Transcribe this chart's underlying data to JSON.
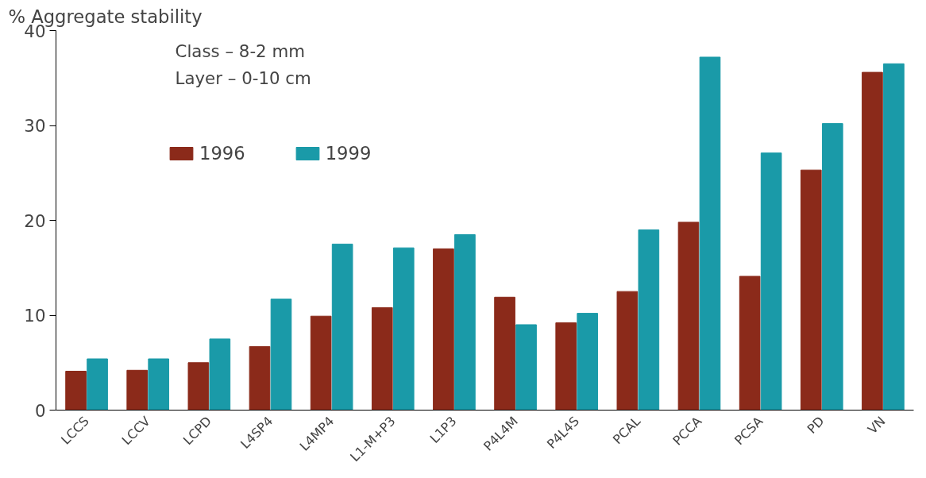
{
  "chart_data": {
    "type": "bar",
    "ylabel": "% Aggregate stability",
    "categories": [
      "LCCS",
      "LCCV",
      "LCPD",
      "L4SP4",
      "L4MP4",
      "L1-M+P3",
      "L1P3",
      "P4L4M",
      "P4L4S",
      "PCAL",
      "PCCA",
      "PCSA",
      "PD",
      "VN"
    ],
    "series": [
      {
        "name": "1996",
        "color": "#8b2a1a",
        "values": [
          4.1,
          4.2,
          5.0,
          6.7,
          9.9,
          10.8,
          17.0,
          11.9,
          9.2,
          12.5,
          19.8,
          14.1,
          25.3,
          35.6
        ]
      },
      {
        "name": "1999",
        "color": "#1a9aa8",
        "values": [
          5.4,
          5.4,
          7.5,
          11.7,
          17.5,
          17.1,
          18.5,
          9.0,
          10.2,
          19.0,
          37.2,
          27.1,
          30.2,
          36.5
        ]
      }
    ],
    "ylim": [
      0,
      40
    ],
    "yticks": [
      0,
      10,
      20,
      30,
      40
    ],
    "grid": false,
    "legend": "top left",
    "annotations": [
      "Class – 8-2 mm",
      "Layer – 0-10 cm"
    ]
  }
}
